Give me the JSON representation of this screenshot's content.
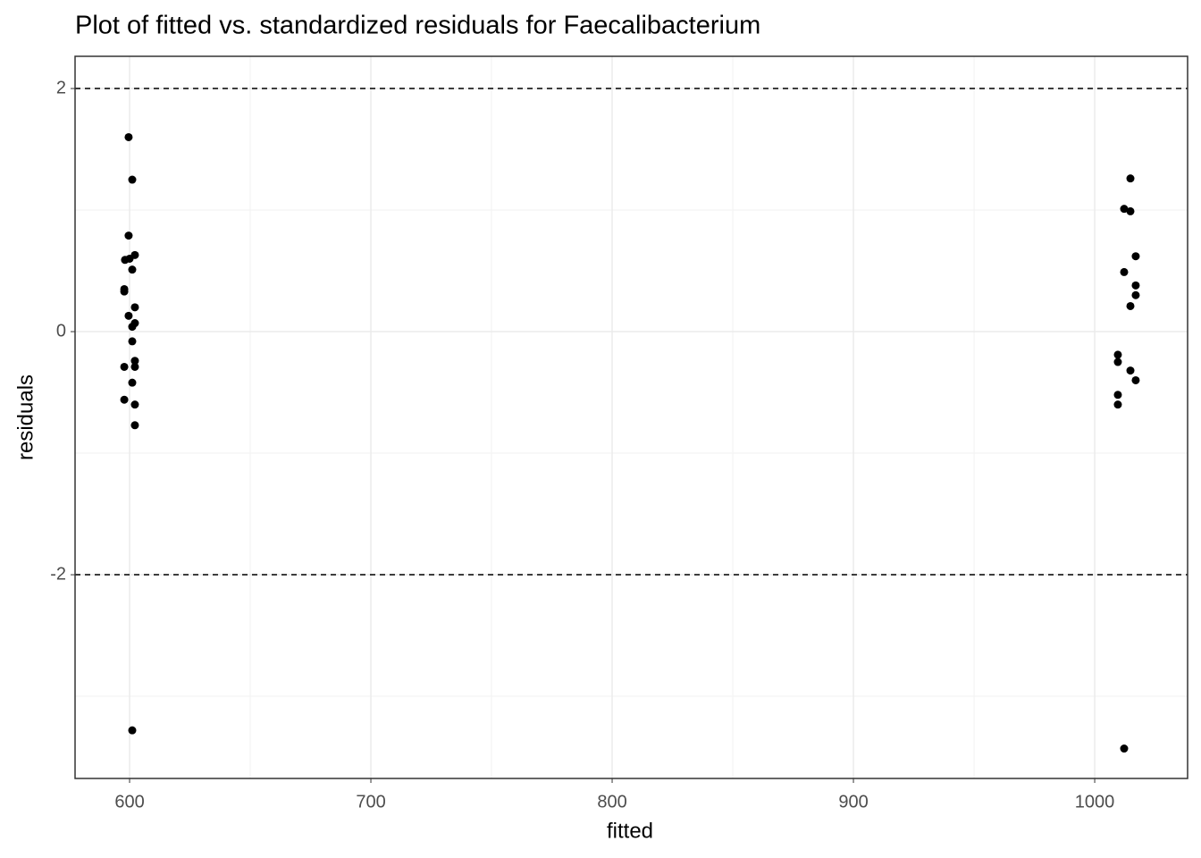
{
  "chart_data": {
    "type": "scatter",
    "title": "Plot of fitted vs. standardized residuals for Faecalibacterium",
    "x_label": "fitted",
    "y_label": "residuals",
    "color": "#000000",
    "x": [
      599.6,
      601.1,
      599.6,
      598.1,
      600.0,
      602.2,
      601.1,
      597.8,
      597.8,
      602.2,
      599.6,
      602.2,
      601.1,
      601.1,
      602.2,
      597.8,
      602.2,
      601.1,
      597.8,
      602.2,
      602.2,
      601.1,
      1014.8,
      1012.2,
      1014.8,
      1017.0,
      1012.2,
      1017.0,
      1017.0,
      1014.8,
      1009.6,
      1009.6,
      1014.8,
      1017.0,
      1009.6,
      1009.6,
      1012.2
    ],
    "values": [
      1.6,
      1.25,
      0.79,
      0.59,
      0.6,
      0.63,
      0.51,
      0.35,
      0.33,
      0.2,
      0.13,
      0.07,
      0.04,
      -0.08,
      -0.24,
      -0.29,
      -0.29,
      -0.42,
      -0.56,
      -0.6,
      -0.77,
      -3.28,
      1.26,
      1.01,
      0.99,
      0.62,
      0.49,
      0.38,
      0.3,
      0.21,
      -0.19,
      -0.25,
      -0.32,
      -0.4,
      -0.52,
      -0.6,
      -3.43
    ],
    "xlim": [
      577.4,
      1038.5
    ],
    "xticks": [
      600,
      700,
      800,
      900,
      1000
    ],
    "ylim": [
      -3.676,
      2.265
    ],
    "yticks": [
      -2,
      0,
      2
    ],
    "hlines": [
      -2,
      2
    ],
    "grid": true
  }
}
